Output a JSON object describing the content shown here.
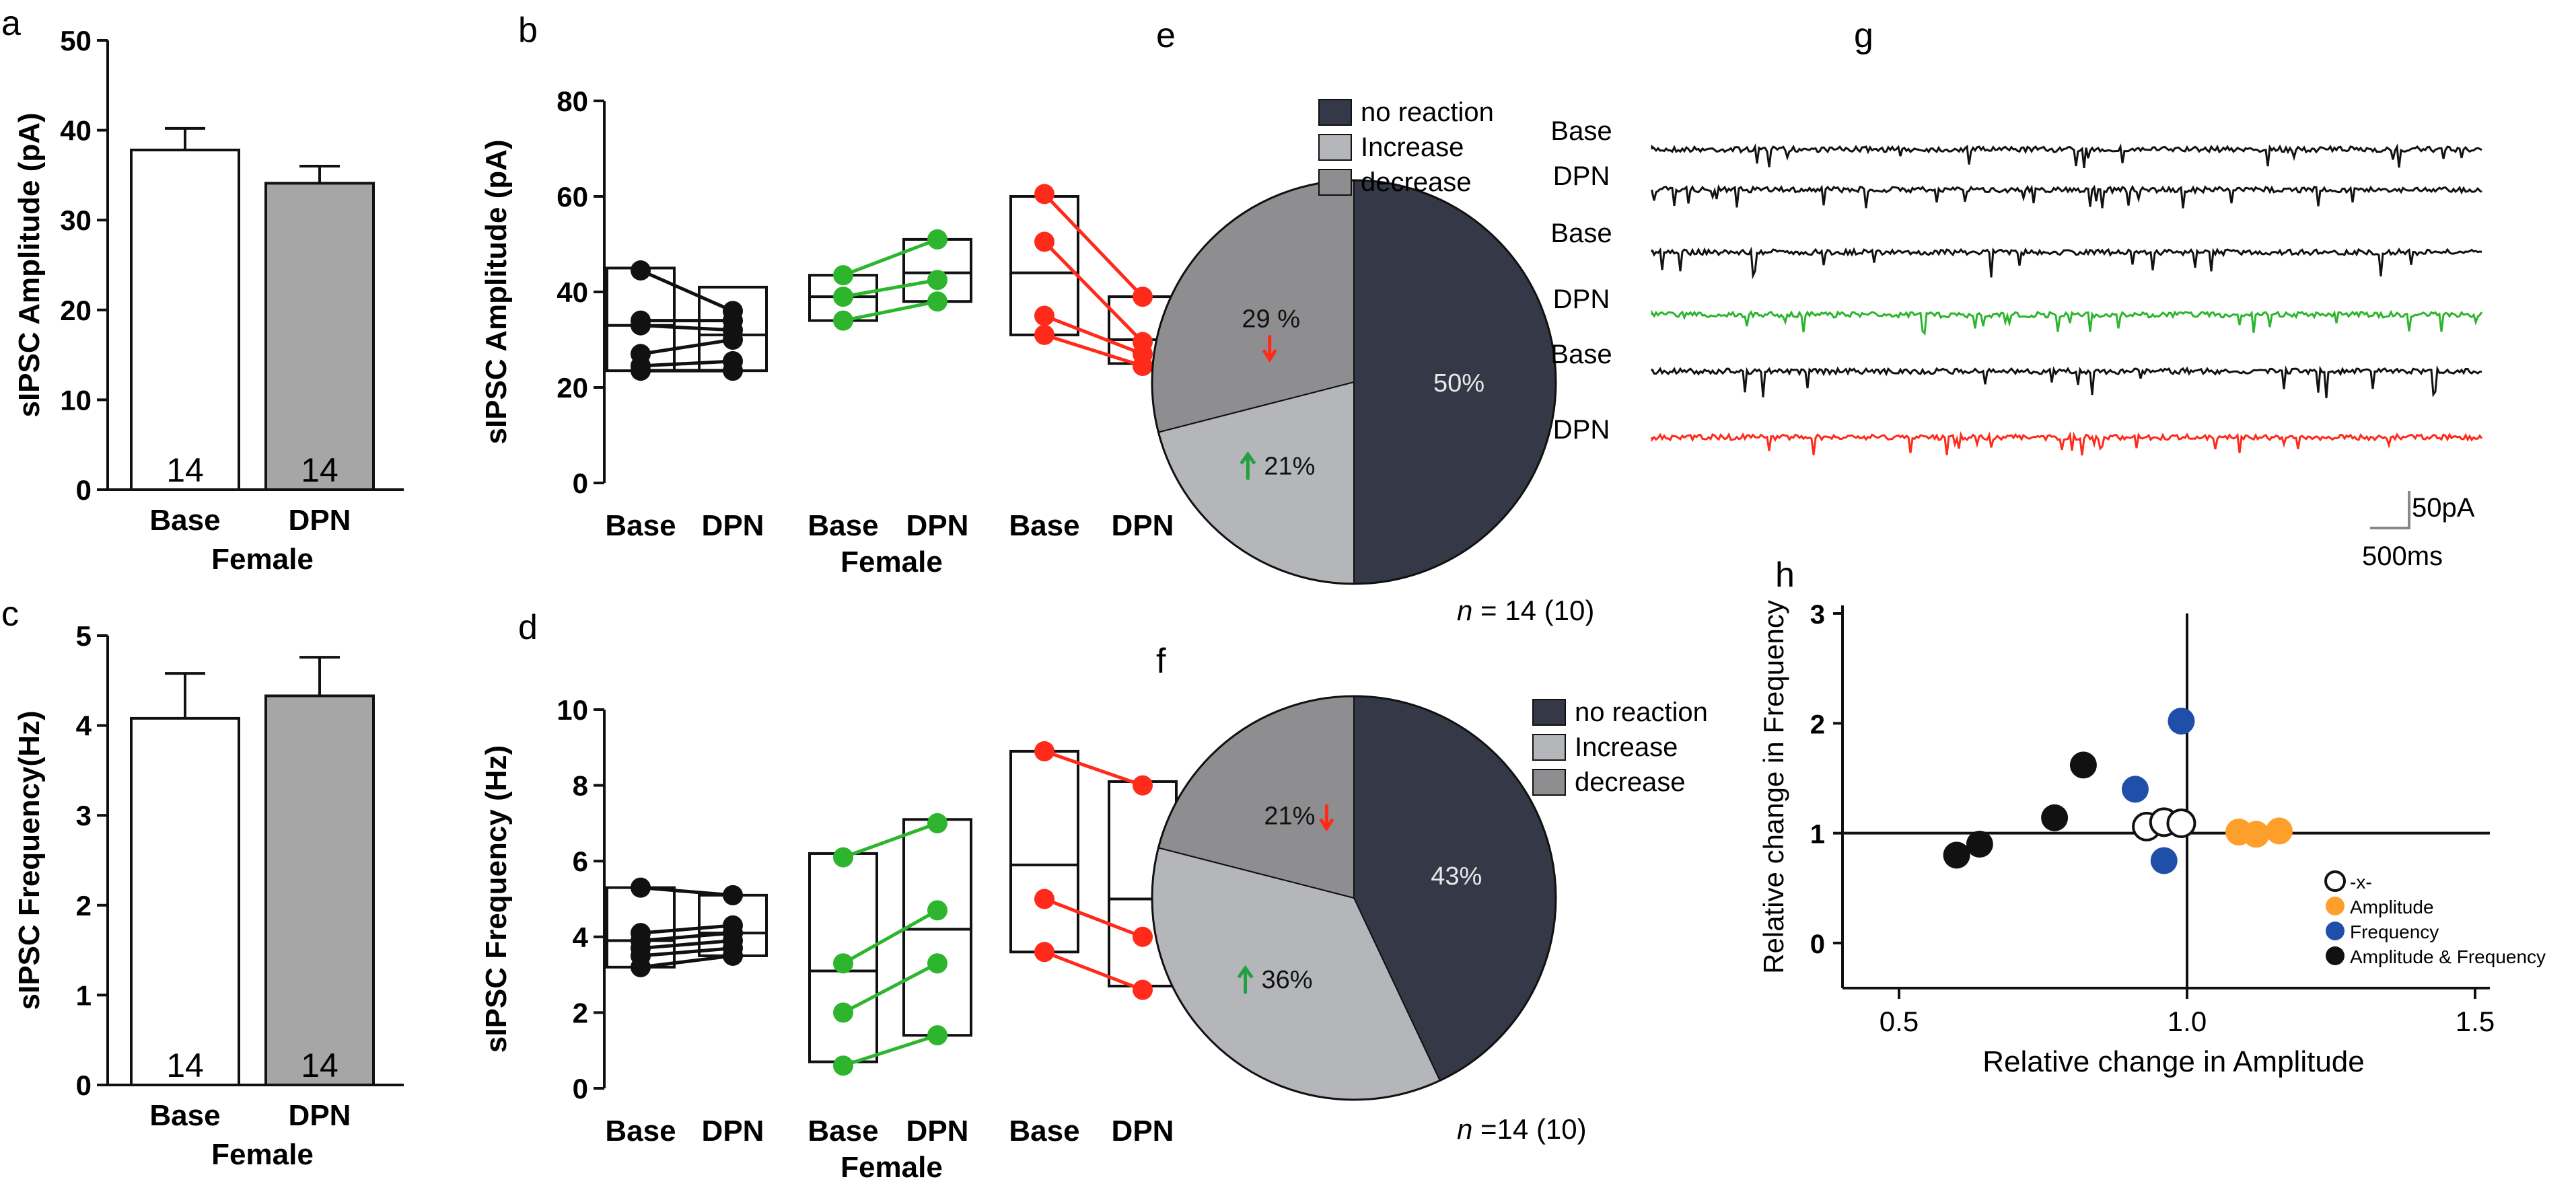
{
  "panel_letters": {
    "a": "a",
    "b": "b",
    "c": "c",
    "d": "d",
    "e": "e",
    "f": "f",
    "g": "g",
    "h": "h"
  },
  "colors": {
    "axis": "#111111",
    "base_bar": "#ffffff",
    "dpn_bar": "#a6a6a6",
    "group_black": "#111111",
    "group_green": "#2db52d",
    "group_red": "#ff2a1a",
    "pie_no_reaction": "#353846",
    "pie_increase": "#b4b6b9",
    "pie_decrease": "#8e8e90",
    "arrow_up": "#22a040",
    "arrow_down": "#ff2a1a",
    "trace_black": "#111111",
    "trace_green": "#2db52d",
    "trace_red": "#ff2a1a",
    "scatter_open": "#ffffff",
    "scatter_amplitude": "#ff9f2b",
    "scatter_frequency": "#1f4fa8",
    "scatter_both": "#111111"
  },
  "chart_data": [
    {
      "id": "a",
      "type": "bar",
      "ylabel": "sIPSC Amplitude (pA)",
      "xlabel": "Female",
      "categories": [
        "Base",
        "DPN"
      ],
      "values": [
        37.8,
        34.1
      ],
      "errors": [
        2.4,
        1.9
      ],
      "n_labels": [
        "14",
        "14"
      ],
      "ylim": [
        0,
        50
      ],
      "yticks": [
        "0",
        "10",
        "20",
        "30",
        "40",
        "50"
      ]
    },
    {
      "id": "b",
      "type": "scatter",
      "subtype": "box-with-paired-lines",
      "ylabel": "sIPSC Amplitude (pA)",
      "xlabel": "Female",
      "categories": [
        "Base",
        "DPN",
        "Base",
        "DPN",
        "Base",
        "DPN"
      ],
      "ylim": [
        0,
        80
      ],
      "yticks": [
        "0",
        "20",
        "40",
        "60",
        "80"
      ],
      "groups": [
        {
          "color_key": "group_black",
          "base": {
            "min": 23.5,
            "median": 33,
            "max": 45
          },
          "dpn": {
            "min": 23.5,
            "median": 31,
            "max": 41
          },
          "pairs": [
            [
              44.5,
              36
            ],
            [
              34,
              34
            ],
            [
              33,
              32
            ],
            [
              27,
              30
            ],
            [
              24.5,
              25.5
            ],
            [
              23.5,
              23.5
            ]
          ]
        },
        {
          "color_key": "group_green",
          "base": {
            "min": 34,
            "median": 39,
            "max": 43.5
          },
          "dpn": {
            "min": 38,
            "median": 44,
            "max": 51
          },
          "pairs": [
            [
              43.5,
              51
            ],
            [
              39,
              42.5
            ],
            [
              34,
              38
            ]
          ]
        },
        {
          "color_key": "group_red",
          "base": {
            "min": 31,
            "median": 44,
            "max": 60
          },
          "dpn": {
            "min": 25,
            "median": 30,
            "max": 39
          },
          "pairs": [
            [
              60.5,
              39
            ],
            [
              50.5,
              29.5
            ],
            [
              35,
              27
            ],
            [
              31,
              24.5
            ]
          ]
        }
      ]
    },
    {
      "id": "c",
      "type": "bar",
      "ylabel": "sIPSC Frequency(Hz)",
      "xlabel": "Female",
      "categories": [
        "Base",
        "DPN"
      ],
      "values": [
        4.08,
        4.33
      ],
      "errors": [
        0.5,
        0.43
      ],
      "n_labels": [
        "14",
        "14"
      ],
      "ylim": [
        0,
        5
      ],
      "yticks": [
        "0",
        "1",
        "2",
        "3",
        "4",
        "5"
      ]
    },
    {
      "id": "d",
      "type": "scatter",
      "subtype": "box-with-paired-lines",
      "ylabel": "sIPSC Frequency (Hz)",
      "xlabel": "Female",
      "categories": [
        "Base",
        "DPN",
        "Base",
        "DPN",
        "Base",
        "DPN"
      ],
      "ylim": [
        0,
        10
      ],
      "yticks": [
        "0",
        "2",
        "4",
        "6",
        "8",
        "10"
      ],
      "groups": [
        {
          "color_key": "group_black",
          "base": {
            "min": 3.2,
            "median": 3.9,
            "max": 5.3
          },
          "dpn": {
            "min": 3.5,
            "median": 4.1,
            "max": 5.1
          },
          "pairs": [
            [
              5.3,
              5.1
            ],
            [
              4.1,
              4.3
            ],
            [
              3.9,
              4.1
            ],
            [
              3.7,
              3.9
            ],
            [
              3.5,
              3.7
            ],
            [
              3.2,
              3.5
            ]
          ]
        },
        {
          "color_key": "group_green",
          "base": {
            "min": 0.7,
            "median": 3.1,
            "max": 6.2
          },
          "dpn": {
            "min": 1.4,
            "median": 4.2,
            "max": 7.1
          },
          "pairs": [
            [
              6.1,
              7.0
            ],
            [
              3.3,
              4.7
            ],
            [
              2.0,
              3.3
            ],
            [
              0.6,
              1.4
            ]
          ]
        },
        {
          "color_key": "group_red",
          "base": {
            "min": 3.6,
            "median": 5.9,
            "max": 8.9
          },
          "dpn": {
            "min": 2.7,
            "median": 5.0,
            "max": 8.1
          },
          "pairs": [
            [
              8.9,
              8.0
            ],
            [
              5.0,
              4.0
            ],
            [
              3.6,
              2.6
            ]
          ]
        }
      ]
    },
    {
      "id": "e",
      "type": "pie",
      "legend": [
        "no reaction",
        "Increase",
        "decrease"
      ],
      "values": [
        50,
        21,
        29
      ],
      "labels": [
        "50%",
        "21%",
        "29 %"
      ],
      "color_keys": [
        "pie_no_reaction",
        "pie_increase",
        "pie_decrease"
      ],
      "n_prefix": "n",
      "n_text": " = 14 (10)"
    },
    {
      "id": "f",
      "type": "pie",
      "legend": [
        "no reaction",
        "Increase",
        "decrease"
      ],
      "values": [
        43,
        36,
        21
      ],
      "labels": [
        "43%",
        "36%",
        "21%"
      ],
      "color_keys": [
        "pie_no_reaction",
        "pie_increase",
        "pie_decrease"
      ],
      "n_prefix": "n",
      "n_text": " =14 (10)"
    },
    {
      "id": "h",
      "type": "scatter",
      "xlabel": "Relative change in Amplitude",
      "ylabel": "Relative change in Frequency",
      "xlim": [
        0.4,
        1.5
      ],
      "ylim": [
        -0.2,
        3
      ],
      "xticks": [
        "0.5",
        "1.0",
        "1.5"
      ],
      "yticks": [
        "0",
        "1",
        "2",
        "3"
      ],
      "reference_lines": {
        "x": 1.0,
        "y": 1.0
      },
      "legend": [
        "-x-",
        "Amplitude",
        "Frequency",
        "Amplitude & Frequency"
      ],
      "series": [
        {
          "name": "-x-",
          "color_key": "scatter_open",
          "points": [
            [
              0.93,
              1.06
            ],
            [
              0.96,
              1.1
            ],
            [
              0.99,
              1.09
            ]
          ]
        },
        {
          "name": "Amplitude",
          "color_key": "scatter_amplitude",
          "points": [
            [
              1.09,
              1.01
            ],
            [
              1.12,
              0.99
            ],
            [
              1.16,
              1.02
            ]
          ]
        },
        {
          "name": "Frequency",
          "color_key": "scatter_frequency",
          "points": [
            [
              0.91,
              1.4
            ],
            [
              0.96,
              0.75
            ],
            [
              0.99,
              2.02
            ]
          ]
        },
        {
          "name": "Amplitude & Frequency",
          "color_key": "scatter_both",
          "points": [
            [
              0.6,
              0.8
            ],
            [
              0.64,
              0.9
            ],
            [
              0.77,
              1.14
            ],
            [
              0.82,
              1.62
            ]
          ]
        }
      ]
    }
  ],
  "traces": {
    "labels": [
      "Base",
      "DPN",
      "Base",
      "DPN",
      "Base",
      "DPN"
    ],
    "color_keys": [
      "trace_black",
      "trace_black",
      "trace_black",
      "trace_green",
      "trace_black",
      "trace_red"
    ],
    "scale_current": "50pA",
    "scale_time": "500ms"
  }
}
